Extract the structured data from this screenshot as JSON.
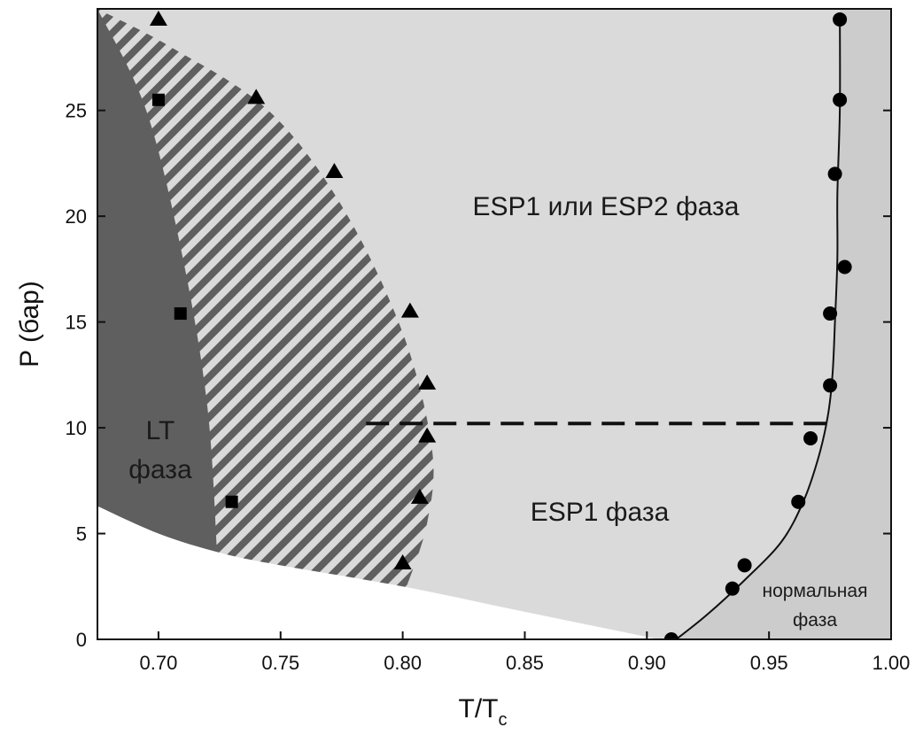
{
  "chart_data": {
    "type": "scatter",
    "title": "",
    "xlabel": "T/T",
    "xlabel_sub": "c",
    "ylabel": "P (бар)",
    "xlim": [
      0.675,
      1.0
    ],
    "ylim": [
      0,
      29.8
    ],
    "x_ticks": [
      "0.70",
      "0.75",
      "0.80",
      "0.85",
      "0.90",
      "0.95",
      "1.00"
    ],
    "x_tick_values": [
      0.7,
      0.75,
      0.8,
      0.85,
      0.9,
      0.95,
      1.0
    ],
    "y_ticks": [
      "0",
      "5",
      "10",
      "15",
      "20",
      "25"
    ],
    "y_tick_values": [
      0,
      5,
      10,
      15,
      20,
      25
    ],
    "grid": false,
    "colors": {
      "lt_phase": "#5f5f5f",
      "esp_phase": "#dadada",
      "normal_phase": "#cccccc",
      "hatch_light": "#dadada",
      "hatch_dark": "#5f5f5f",
      "marker": "#000000",
      "background": "#ffffff"
    },
    "region_labels": {
      "esp_upper": "ESP1 или ESP2 фаза",
      "esp1": "ESP1 фаза",
      "lt_line1": "LT",
      "lt_line2": "фаза",
      "normal_line1": "нормальная",
      "normal_line2": "фаза"
    },
    "series": [
      {
        "marker": "square",
        "x": [
          0.7,
          0.709,
          0.73
        ],
        "y": [
          25.5,
          15.4,
          6.5
        ]
      },
      {
        "marker": "triangle",
        "x": [
          0.7,
          0.74,
          0.772,
          0.803,
          0.81,
          0.81,
          0.807,
          0.8
        ],
        "y": [
          29.3,
          25.6,
          22.1,
          15.5,
          12.1,
          9.6,
          6.7,
          3.6
        ]
      },
      {
        "marker": "circle",
        "x": [
          0.91,
          0.935,
          0.94,
          0.962,
          0.967,
          0.975,
          0.975,
          0.981,
          0.977,
          0.979,
          0.979
        ],
        "y": [
          0,
          2.4,
          3.5,
          6.5,
          9.5,
          12.0,
          15.4,
          17.6,
          22.0,
          25.5,
          29.3
        ]
      }
    ],
    "phase_line": {
      "style": "solid",
      "x": [
        0.912,
        0.925,
        0.94,
        0.955,
        0.964,
        0.97,
        0.974,
        0.976,
        0.977,
        0.978,
        0.978,
        0.979,
        0.979
      ],
      "y": [
        0,
        1.2,
        2.8,
        4.6,
        6.5,
        8.5,
        10.5,
        12.5,
        15.0,
        18.0,
        21.0,
        25.0,
        29.6
      ]
    },
    "dashed_line": {
      "style": "dashed",
      "x": [
        0.785,
        0.975
      ],
      "y": [
        10.2,
        10.2
      ]
    },
    "boundaries": {
      "lower_white_edge": {
        "x": [
          0.675,
          0.7,
          0.725,
          0.75,
          0.8,
          0.85,
          0.905
        ],
        "y": [
          6.3,
          5.0,
          4.1,
          3.5,
          2.5,
          1.3,
          0
        ]
      },
      "lt_edge": {
        "x": [
          0.675,
          0.695,
          0.71,
          0.72,
          0.724
        ],
        "y": [
          29.8,
          25.0,
          18.0,
          11.0,
          4.1
        ]
      },
      "hatch_edge": {
        "x": [
          0.675,
          0.705,
          0.745,
          0.775,
          0.8,
          0.812,
          0.81,
          0.801
        ],
        "y": [
          29.8,
          28.0,
          25.0,
          20.5,
          14.5,
          9.0,
          5.5,
          2.3
        ]
      }
    }
  }
}
